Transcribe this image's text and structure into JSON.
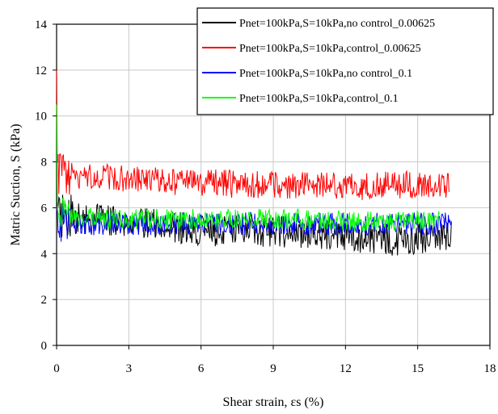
{
  "chart_data": {
    "type": "line",
    "title": "",
    "xlabel": "Shear strain, εs (%)",
    "ylabel": "Matric Suction, S (kPa)",
    "xlim": [
      0,
      18
    ],
    "ylim": [
      0,
      14
    ],
    "xticks": [
      0,
      3,
      6,
      9,
      12,
      15,
      18
    ],
    "yticks": [
      0,
      2,
      4,
      6,
      8,
      10,
      12,
      14
    ],
    "grid": true,
    "legend_position": "top-right",
    "series": [
      {
        "name": "Pnet=100kPa,S=10kPa,no control_0.00625",
        "color": "#000000",
        "x_end": 16.4,
        "start_value": 10.0,
        "base": [
          [
            0.3,
            5.6
          ],
          [
            2,
            5.5
          ],
          [
            4,
            5.3
          ],
          [
            6,
            5.0
          ],
          [
            8,
            5.0
          ],
          [
            10,
            4.9
          ],
          [
            12,
            4.7
          ],
          [
            14,
            4.6
          ],
          [
            16.4,
            4.8
          ]
        ],
        "noise_amplitude": 0.7
      },
      {
        "name": "Pnet=100kPa,S=10kPa,control_0.00625",
        "color": "#ff0000",
        "x_end": 16.3,
        "start_value": 12.0,
        "base": [
          [
            0.3,
            7.4
          ],
          [
            2,
            7.3
          ],
          [
            4,
            7.2
          ],
          [
            6,
            7.1
          ],
          [
            8,
            7.0
          ],
          [
            10,
            7.0
          ],
          [
            12,
            6.9
          ],
          [
            14,
            7.0
          ],
          [
            16.3,
            7.0
          ]
        ],
        "noise_amplitude": 0.6
      },
      {
        "name": "Pnet=100kPa,S=10kPa,no control_0.1",
        "color": "#0000ff",
        "x_end": 16.4,
        "start_value": 5.8,
        "base": [
          [
            0.3,
            5.3
          ],
          [
            2,
            5.3
          ],
          [
            4,
            5.3
          ],
          [
            6,
            5.3
          ],
          [
            8,
            5.3
          ],
          [
            10,
            5.3
          ],
          [
            12,
            5.3
          ],
          [
            14,
            5.3
          ],
          [
            16.4,
            5.3
          ]
        ],
        "noise_amplitude": 0.5
      },
      {
        "name": "Pnet=100kPa,S=10kPa,control_0.1",
        "color": "#00ff00",
        "x_end": 15.9,
        "start_value": 10.5,
        "base": [
          [
            0.3,
            5.7
          ],
          [
            2,
            5.5
          ],
          [
            4,
            5.5
          ],
          [
            6,
            5.5
          ],
          [
            8,
            5.5
          ],
          [
            10,
            5.5
          ],
          [
            12,
            5.4
          ],
          [
            14,
            5.4
          ],
          [
            15.9,
            5.4
          ]
        ],
        "noise_amplitude": 0.45
      }
    ]
  }
}
